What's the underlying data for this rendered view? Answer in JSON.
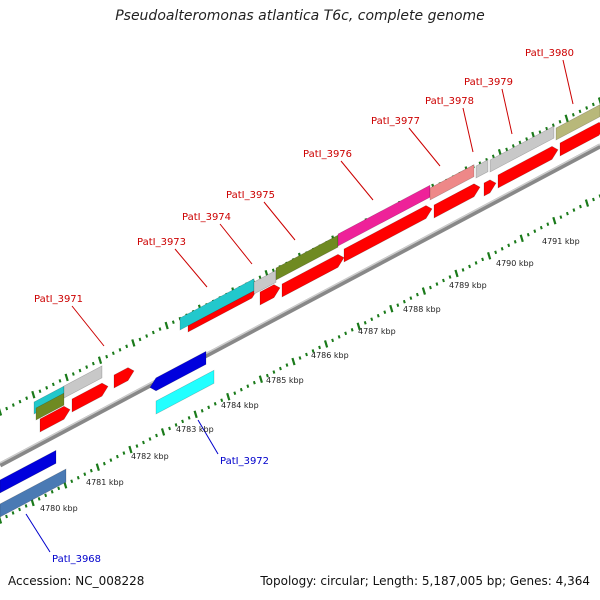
{
  "title": "Pseudoalteromonas atlantica T6c, complete genome",
  "footer": {
    "accession": "Accession: NC_008228",
    "stats": "Topology: circular; Length: 5,187,005 bp; Genes: 4,364"
  },
  "scale_labels": [
    "4780 kbp",
    "4781 kbp",
    "4782 kbp",
    "4783 kbp",
    "4784 kbp",
    "4785 kbp",
    "4786 kbp",
    "4787 kbp",
    "4788 kbp",
    "4789 kbp",
    "4790 kbp",
    "4791 kbp"
  ],
  "gene_labels_top": [
    "PatI_3971",
    "PatI_3973",
    "PatI_3974",
    "PatI_3975",
    "PatI_3976",
    "PatI_3977",
    "PatI_3978",
    "PatI_3979",
    "PatI_3980"
  ],
  "gene_labels_bottom": [
    "PatI_3972",
    "PatI_3968"
  ],
  "colors": {
    "cds_red": "#ff0000",
    "gene_label_red": "#cc0000",
    "gene_label_blue": "#0000cc",
    "backbone": "#999999",
    "tick_green": "#1a7a1a",
    "cyan": "#22c8cc",
    "olive": "#6f8a22",
    "magenta": "#ee2299",
    "pink": "#ee8888",
    "khaki": "#b8b87a",
    "gray": "#c8c8c8",
    "blue": "#0000dd",
    "light_cyan": "#22ffff",
    "steel": "#4a7ab4"
  }
}
